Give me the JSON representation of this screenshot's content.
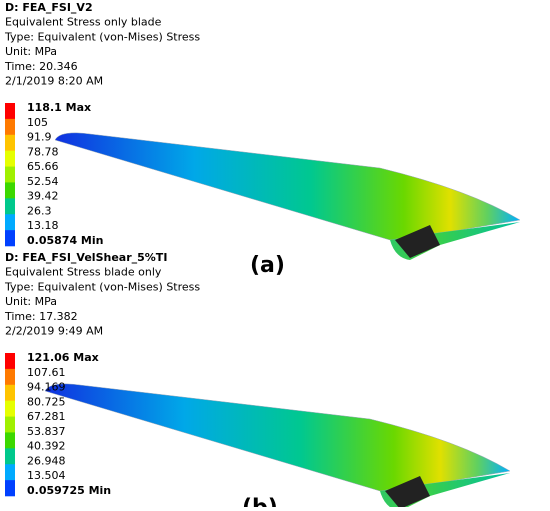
{
  "panels": [
    {
      "header": [
        "D: FEA_FSI_V2",
        "Equivalent Stress only blade",
        "Type: Equivalent (von-Mises) Stress",
        "Unit: MPa",
        "Time: 20.346",
        "2/1/2019 8:20 AM"
      ],
      "legend": [
        "118.1 Max",
        "105",
        "91.9",
        "78.78",
        "65.66",
        "52.54",
        "39.42",
        "26.3",
        "13.18",
        "0.05874 Min"
      ],
      "label": "(a)"
    },
    {
      "header": [
        "D: FEA_FSI_VelShear_5%TI",
        "Equivalent Stress blade only",
        "Type: Equivalent (von-Mises) Stress",
        "Unit: MPa",
        "Time: 17.382",
        "2/2/2019 9:49 AM"
      ],
      "legend": [
        "121.06 Max",
        "107.61",
        "94.169",
        "80.725",
        "67.281",
        "53.837",
        "40.392",
        "26.948",
        "13.504",
        "0.059725 Min"
      ],
      "label": "(b)"
    }
  ],
  "legend_colors": [
    "#ff0000",
    "#ff7a00",
    "#ffc400",
    "#e6ff00",
    "#a0f000",
    "#3cd800",
    "#00c88c",
    "#00aaff",
    "#0040ff"
  ]
}
